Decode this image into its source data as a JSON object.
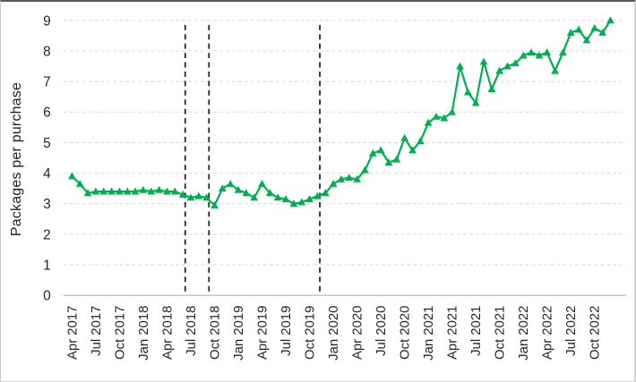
{
  "window": {
    "background": "#ffffff",
    "frame_border_color": "#595959"
  },
  "chart_data": {
    "type": "line",
    "title": "",
    "xlabel": "",
    "ylabel": "Packages per purchase",
    "ylim": [
      0,
      9
    ],
    "ytick_interval": 1,
    "yticks": [
      0,
      1,
      2,
      3,
      4,
      5,
      6,
      7,
      8,
      9
    ],
    "grid": "horizontal-dashed-light-gray",
    "legend": "none",
    "x_frequency": "monthly",
    "x_start": "Apr 2017",
    "x_end": "Dec 2022",
    "xtick_labels": [
      "Apr 2017",
      "Jul 2017",
      "Oct 2017",
      "Jan 2018",
      "Apr 2018",
      "Jul 2018",
      "Oct 2018",
      "Jan 2019",
      "Apr 2019",
      "Jul 2019",
      "Oct 2019",
      "Jan 2020",
      "Apr 2020",
      "Jul 2020",
      "Oct 2020",
      "Jan 2021",
      "Apr 2021",
      "Jul 2021",
      "Oct 2021",
      "Jan 2022",
      "Apr 2022",
      "Jul 2022",
      "Oct 2022"
    ],
    "xtick_every_n_months": 3,
    "x": [
      "Apr 2017",
      "May 2017",
      "Jun 2017",
      "Jul 2017",
      "Aug 2017",
      "Sep 2017",
      "Oct 2017",
      "Nov 2017",
      "Dec 2017",
      "Jan 2018",
      "Feb 2018",
      "Mar 2018",
      "Apr 2018",
      "May 2018",
      "Jun 2018",
      "Jul 2018",
      "Aug 2018",
      "Sep 2018",
      "Oct 2018",
      "Nov 2018",
      "Dec 2018",
      "Jan 2019",
      "Feb 2019",
      "Mar 2019",
      "Apr 2019",
      "May 2019",
      "Jun 2019",
      "Jul 2019",
      "Aug 2019",
      "Sep 2019",
      "Oct 2019",
      "Nov 2019",
      "Dec 2019",
      "Jan 2020",
      "Feb 2020",
      "Mar 2020",
      "Apr 2020",
      "May 2020",
      "Jun 2020",
      "Jul 2020",
      "Aug 2020",
      "Sep 2020",
      "Oct 2020",
      "Nov 2020",
      "Dec 2020",
      "Jan 2021",
      "Feb 2021",
      "Mar 2021",
      "Apr 2021",
      "May 2021",
      "Jun 2021",
      "Jul 2021",
      "Aug 2021",
      "Sep 2021",
      "Oct 2021",
      "Nov 2021",
      "Dec 2021",
      "Jan 2022",
      "Feb 2022",
      "Mar 2022",
      "Apr 2022",
      "May 2022",
      "Jun 2022",
      "Jul 2022",
      "Aug 2022",
      "Sep 2022",
      "Oct 2022",
      "Nov 2022",
      "Dec 2022"
    ],
    "series": [
      {
        "name": "Packages per purchase",
        "color": "#00B050",
        "marker": "triangle-up",
        "line_width": 2.2,
        "values": [
          3.9,
          3.65,
          3.35,
          3.4,
          3.4,
          3.4,
          3.4,
          3.4,
          3.4,
          3.45,
          3.4,
          3.45,
          3.4,
          3.4,
          3.3,
          3.2,
          3.25,
          3.2,
          2.95,
          3.5,
          3.65,
          3.45,
          3.35,
          3.2,
          3.65,
          3.35,
          3.2,
          3.15,
          3.0,
          3.05,
          3.15,
          3.25,
          3.35,
          3.65,
          3.8,
          3.85,
          3.8,
          4.1,
          4.65,
          4.75,
          4.35,
          4.45,
          5.15,
          4.75,
          5.05,
          5.65,
          5.85,
          5.8,
          6.0,
          7.5,
          6.65,
          6.3,
          7.65,
          6.75,
          7.35,
          7.5,
          7.6,
          7.85,
          7.95,
          7.85,
          7.95,
          7.35,
          7.95,
          8.6,
          8.7,
          8.35,
          8.75,
          8.6,
          9.0
        ]
      }
    ],
    "vlines": [
      {
        "month_index": 14.3,
        "between": "Jun 2018 / Jul 2018",
        "style": "dashed",
        "color": "#262626"
      },
      {
        "month_index": 17.3,
        "between": "Sep 2018 / Oct 2018",
        "style": "dashed",
        "color": "#262626"
      },
      {
        "month_index": 31.3,
        "between": "Nov 2019 / Dec 2019",
        "style": "dashed",
        "color": "#262626"
      }
    ],
    "style": {
      "gridline_color": "#d9d9d9",
      "axis_line_color": "#bfbfbf",
      "tick_label_color": "#262626"
    }
  }
}
